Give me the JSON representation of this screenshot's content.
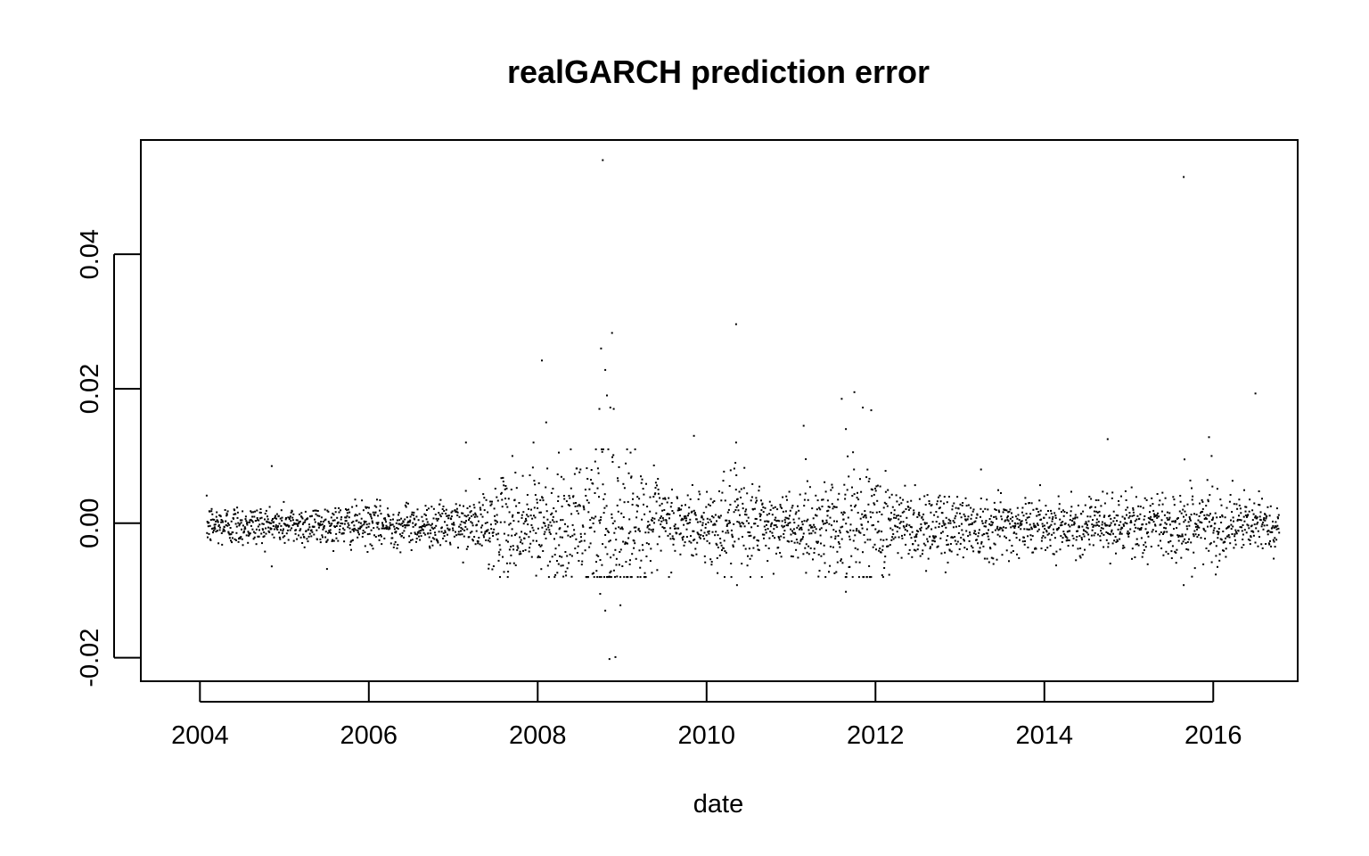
{
  "chart_data": {
    "type": "scatter",
    "title": "realGARCH prediction error",
    "xlabel": "date",
    "ylabel": "",
    "xlim": [
      2003.3,
      2017.0
    ],
    "ylim": [
      -0.0235,
      0.057
    ],
    "x_ticks": [
      2004,
      2006,
      2008,
      2010,
      2012,
      2014,
      2016
    ],
    "x_tick_labels": [
      "2004",
      "2006",
      "2008",
      "2010",
      "2012",
      "2014",
      "2016"
    ],
    "y_ticks": [
      -0.02,
      0.0,
      0.02,
      0.04
    ],
    "y_tick_labels": [
      "-0.02",
      "0.00",
      "0.02",
      "0.04"
    ],
    "grid": false,
    "legend": "none",
    "point_color": "#000000",
    "x_start": 2004.08,
    "x_end": 2016.78,
    "num_points": 3200,
    "volatility_profile": [
      [
        2004.0,
        0.0016
      ],
      [
        2005.0,
        0.0015
      ],
      [
        2006.0,
        0.0016
      ],
      [
        2007.0,
        0.0016
      ],
      [
        2007.5,
        0.003
      ],
      [
        2008.0,
        0.0045
      ],
      [
        2008.5,
        0.004
      ],
      [
        2008.8,
        0.008
      ],
      [
        2009.0,
        0.0055
      ],
      [
        2009.5,
        0.003
      ],
      [
        2010.0,
        0.0026
      ],
      [
        2010.4,
        0.004
      ],
      [
        2010.7,
        0.003
      ],
      [
        2011.0,
        0.0022
      ],
      [
        2011.6,
        0.0045
      ],
      [
        2011.9,
        0.005
      ],
      [
        2012.3,
        0.003
      ],
      [
        2013.0,
        0.0025
      ],
      [
        2013.5,
        0.0024
      ],
      [
        2014.0,
        0.0018
      ],
      [
        2015.0,
        0.0022
      ],
      [
        2015.5,
        0.0028
      ],
      [
        2016.0,
        0.0025
      ],
      [
        2016.8,
        0.0018
      ]
    ],
    "notable_points": [
      {
        "x": 2004.85,
        "y": 0.0085
      },
      {
        "x": 2007.15,
        "y": 0.012
      },
      {
        "x": 2007.95,
        "y": 0.012
      },
      {
        "x": 2008.05,
        "y": 0.0242
      },
      {
        "x": 2008.1,
        "y": 0.015
      },
      {
        "x": 2008.75,
        "y": 0.026
      },
      {
        "x": 2008.77,
        "y": 0.054
      },
      {
        "x": 2008.8,
        "y": 0.0228
      },
      {
        "x": 2008.82,
        "y": 0.019
      },
      {
        "x": 2008.86,
        "y": 0.0172
      },
      {
        "x": 2008.88,
        "y": 0.0283
      },
      {
        "x": 2008.9,
        "y": 0.017
      },
      {
        "x": 2008.73,
        "y": 0.017
      },
      {
        "x": 2008.74,
        "y": -0.0105
      },
      {
        "x": 2008.8,
        "y": -0.013
      },
      {
        "x": 2008.85,
        "y": -0.0202
      },
      {
        "x": 2008.92,
        "y": -0.0199
      },
      {
        "x": 2008.98,
        "y": -0.0122
      },
      {
        "x": 2009.85,
        "y": 0.013
      },
      {
        "x": 2010.35,
        "y": 0.0296
      },
      {
        "x": 2010.35,
        "y": 0.012
      },
      {
        "x": 2010.36,
        "y": -0.0092
      },
      {
        "x": 2011.15,
        "y": 0.0145
      },
      {
        "x": 2011.6,
        "y": 0.0185
      },
      {
        "x": 2011.65,
        "y": 0.014
      },
      {
        "x": 2011.75,
        "y": 0.0195
      },
      {
        "x": 2011.85,
        "y": 0.0172
      },
      {
        "x": 2011.95,
        "y": 0.0168
      },
      {
        "x": 2011.65,
        "y": -0.0102
      },
      {
        "x": 2011.9,
        "y": -0.008
      },
      {
        "x": 2014.75,
        "y": 0.0125
      },
      {
        "x": 2014.78,
        "y": -0.006
      },
      {
        "x": 2015.65,
        "y": 0.0515
      },
      {
        "x": 2015.66,
        "y": 0.0095
      },
      {
        "x": 2015.65,
        "y": -0.0092
      },
      {
        "x": 2015.95,
        "y": 0.0128
      },
      {
        "x": 2015.98,
        "y": 0.01
      },
      {
        "x": 2016.05,
        "y": -0.0065
      },
      {
        "x": 2016.5,
        "y": 0.0193
      },
      {
        "x": 2007.7,
        "y": 0.01
      },
      {
        "x": 2007.65,
        "y": -0.0072
      },
      {
        "x": 2008.25,
        "y": 0.0105
      },
      {
        "x": 2009.1,
        "y": 0.0105
      },
      {
        "x": 2013.25,
        "y": 0.008
      }
    ]
  }
}
